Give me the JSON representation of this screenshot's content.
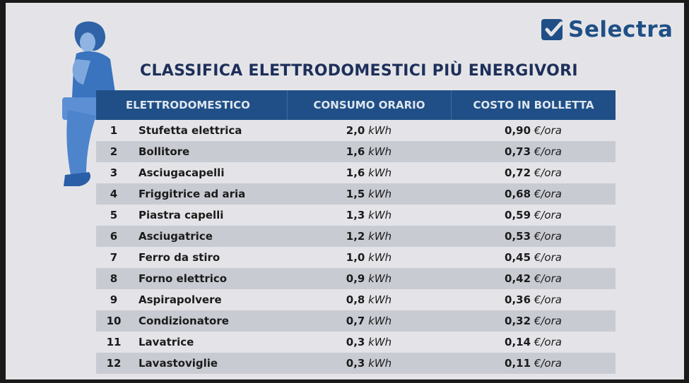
{
  "brand": {
    "name": "Selectra"
  },
  "title": "CLASSIFICA ELETTRODOMESTICI PIÙ ENERGIVORI",
  "colors": {
    "header": "#1f4f86",
    "title": "#1d2f5a",
    "stripe": "#c9cbd3",
    "background": "#e4e4e8"
  },
  "chart_data": {
    "type": "table",
    "columns": [
      "ELETTRODOMESTICO",
      "CONSUMO ORARIO",
      "COSTO IN BOLLETTA"
    ],
    "rows": [
      {
        "rank": "1",
        "name": "Stufetta elettrica",
        "consumption": "2,0",
        "consumption_unit": "kWh",
        "cost": "0,90",
        "cost_unit": "€/ora"
      },
      {
        "rank": "2",
        "name": "Bollitore",
        "consumption": "1,6",
        "consumption_unit": "kWh",
        "cost": "0,73",
        "cost_unit": "€/ora"
      },
      {
        "rank": "3",
        "name": "Asciugacapelli",
        "consumption": "1,6",
        "consumption_unit": "kWh",
        "cost": "0,72",
        "cost_unit": "€/ora"
      },
      {
        "rank": "4",
        "name": "Friggitrice ad aria",
        "consumption": "1,5",
        "consumption_unit": "kWh",
        "cost": "0,68",
        "cost_unit": "€/ora"
      },
      {
        "rank": "5",
        "name": "Piastra capelli",
        "consumption": "1,3",
        "consumption_unit": "kWh",
        "cost": "0,59",
        "cost_unit": "€/ora"
      },
      {
        "rank": "6",
        "name": "Asciugatrice",
        "consumption": "1,2",
        "consumption_unit": "kWh",
        "cost": "0,53",
        "cost_unit": "€/ora"
      },
      {
        "rank": "7",
        "name": "Ferro da stiro",
        "consumption": "1,0",
        "consumption_unit": "kWh",
        "cost": "0,45",
        "cost_unit": "€/ora"
      },
      {
        "rank": "8",
        "name": "Forno elettrico",
        "consumption": "0,9",
        "consumption_unit": "kWh",
        "cost": "0,42",
        "cost_unit": "€/ora"
      },
      {
        "rank": "9",
        "name": "Aspirapolvere",
        "consumption": "0,8",
        "consumption_unit": "kWh",
        "cost": "0,36",
        "cost_unit": "€/ora"
      },
      {
        "rank": "10",
        "name": "Condizionatore",
        "consumption": "0,7",
        "consumption_unit": "kWh",
        "cost": "0,32",
        "cost_unit": "€/ora"
      },
      {
        "rank": "11",
        "name": "Lavatrice",
        "consumption": "0,3",
        "consumption_unit": "kWh",
        "cost": "0,14",
        "cost_unit": "€/ora"
      },
      {
        "rank": "12",
        "name": "Lavastoviglie",
        "consumption": "0,3",
        "consumption_unit": "kWh",
        "cost": "0,11",
        "cost_unit": "€/ora"
      }
    ]
  }
}
